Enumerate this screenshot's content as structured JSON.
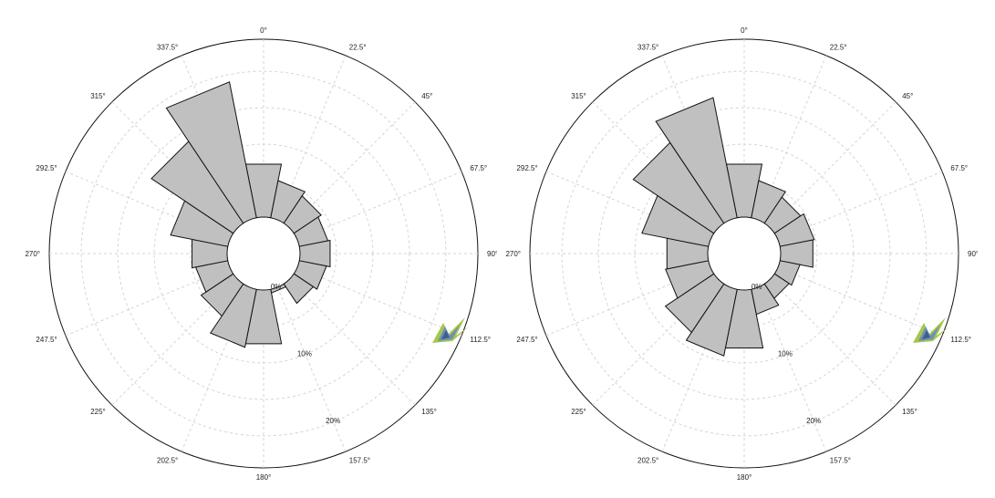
{
  "chart_data": [
    {
      "type": "polar-bar",
      "angle_labels": [
        "0°",
        "22.5°",
        "45°",
        "67.5°",
        "90°",
        "112.5°",
        "135°",
        "157.5°",
        "180°",
        "202.5°",
        "225°",
        "247.5°",
        "270°",
        "292.5°",
        "315°",
        "337.5°"
      ],
      "directions": [
        0,
        22.5,
        45,
        67.5,
        90,
        112.5,
        135,
        157.5,
        180,
        202.5,
        225,
        247.5,
        270,
        292.5,
        315,
        337.5
      ],
      "values": [
        7.5,
        5.2,
        4.5,
        4.0,
        4.3,
        3.8,
        3.2,
        0.5,
        7.6,
        8.1,
        5.3,
        4.5,
        5.0,
        8.0,
        13.5,
        19.0
      ],
      "radial_ticks": [
        0,
        10,
        20
      ],
      "radial_tick_labels": [
        "0%",
        "10%",
        "20%"
      ],
      "rmax": 20,
      "bar_color": "#c0c0c0",
      "grid": true
    },
    {
      "type": "polar-bar",
      "angle_labels": [
        "0°",
        "22.5°",
        "45°",
        "67.5°",
        "90°",
        "112.5°",
        "135°",
        "157.5°",
        "180°",
        "202.5°",
        "225°",
        "247.5°",
        "270°",
        "292.5°",
        "315°",
        "337.5°"
      ],
      "directions": [
        0,
        22.5,
        45,
        67.5,
        90,
        112.5,
        135,
        157.5,
        180,
        202.5,
        225,
        247.5,
        270,
        292.5,
        315,
        337.5
      ],
      "values": [
        7.5,
        5.2,
        4.3,
        4.8,
        4.6,
        2.8,
        2.4,
        3.5,
        8.2,
        9.3,
        8.0,
        6.0,
        5.8,
        9.3,
        13.3,
        16.8
      ],
      "radial_ticks": [
        0,
        10,
        20
      ],
      "radial_tick_labels": [
        "0%",
        "10%",
        "20%"
      ],
      "rmax": 20,
      "bar_color": "#c0c0c0",
      "grid": true
    }
  ],
  "logo_icon": "mosquito-logo-icon"
}
